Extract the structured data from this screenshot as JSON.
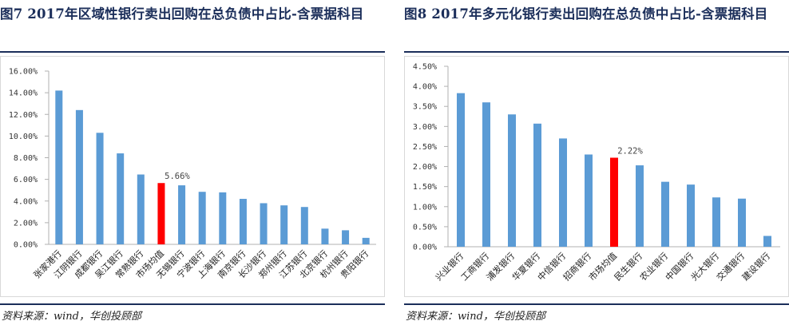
{
  "charts": [
    {
      "title": "图7 2017年区域性银行卖出回购在总负债中占比-含票据科目",
      "source": "资料来源：wind，华创投顾部",
      "chart_data": {
        "type": "bar",
        "title": "图7 2017年区域性银行卖出回购在总负债中占比-含票据科目",
        "xlabel": "",
        "ylabel": "",
        "ylim": [
          0,
          16
        ],
        "yticks": [
          "0.00%",
          "2.00%",
          "4.00%",
          "6.00%",
          "8.00%",
          "10.00%",
          "12.00%",
          "14.00%",
          "16.00%"
        ],
        "categories": [
          "张家港行",
          "江阴银行",
          "成都银行",
          "吴江银行",
          "常熟银行",
          "市场均值",
          "无锡银行",
          "宁波银行",
          "上海银行",
          "南京银行",
          "长沙银行",
          "郑州银行",
          "江苏银行",
          "北京银行",
          "杭州银行",
          "贵阳银行"
        ],
        "values": [
          14.2,
          12.4,
          10.3,
          8.4,
          6.45,
          5.66,
          5.45,
          4.85,
          4.8,
          4.2,
          3.8,
          3.6,
          3.45,
          1.45,
          1.3,
          0.6
        ],
        "highlight_index": 5,
        "highlight_label": "5.66%",
        "bar_color": "#5b9bd5",
        "highlight_color": "#ff0000",
        "grid": false,
        "legend": "none"
      }
    },
    {
      "title": "图8 2017年多元化银行卖出回购在总负债中占比-含票据科目",
      "source": "资料来源：wind，华创投顾部",
      "chart_data": {
        "type": "bar",
        "title": "图8 2017年多元化银行卖出回购在总负债中占比-含票据科目",
        "xlabel": "",
        "ylabel": "",
        "ylim": [
          0,
          4.5
        ],
        "yticks": [
          "0.00%",
          "0.50%",
          "1.00%",
          "1.50%",
          "2.00%",
          "2.50%",
          "3.00%",
          "3.50%",
          "4.00%",
          "4.50%"
        ],
        "categories": [
          "兴业银行",
          "工商银行",
          "浦发银行",
          "华夏银行",
          "中信银行",
          "招商银行",
          "市场均值",
          "民生银行",
          "农业银行",
          "中国银行",
          "光大银行",
          "交通银行",
          "建设银行"
        ],
        "values": [
          3.83,
          3.6,
          3.3,
          3.07,
          2.7,
          2.3,
          2.22,
          2.03,
          1.62,
          1.55,
          1.23,
          1.2,
          0.27
        ],
        "highlight_index": 6,
        "highlight_label": "2.22%",
        "bar_color": "#5b9bd5",
        "highlight_color": "#ff0000",
        "grid": false,
        "legend": "none"
      }
    }
  ]
}
